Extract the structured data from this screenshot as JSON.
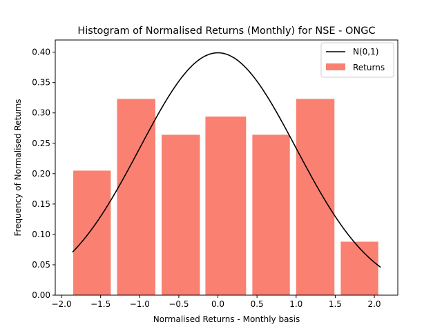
{
  "chart_data": {
    "type": "bar",
    "title": "Histogram of Normalised Returns (Monthly) for NSE - ONGC",
    "xlabel": "Normalised Returns - Monthly basis",
    "ylabel": "Frequency of Normalised Returns",
    "xlim": [
      -2.08,
      2.3
    ],
    "ylim": [
      0.0,
      0.42
    ],
    "xticks": [
      -2.0,
      -1.5,
      -1.0,
      -0.5,
      0.0,
      0.5,
      1.0,
      1.5,
      2.0
    ],
    "xtick_labels": [
      "−2.0",
      "−1.5",
      "−1.0",
      "−0.5",
      "0.0",
      "0.5",
      "1.0",
      "1.5",
      "2.0"
    ],
    "yticks": [
      0.0,
      0.05,
      0.1,
      0.15,
      0.2,
      0.25,
      0.3,
      0.35,
      0.4
    ],
    "ytick_labels": [
      "0.00",
      "0.05",
      "0.10",
      "0.15",
      "0.20",
      "0.25",
      "0.30",
      "0.35",
      "0.40"
    ],
    "bars": [
      {
        "x0": -1.85,
        "x1": -1.37,
        "value": 0.205
      },
      {
        "x0": -1.29,
        "x1": -0.8,
        "value": 0.323
      },
      {
        "x0": -0.72,
        "x1": -0.23,
        "value": 0.264
      },
      {
        "x0": -0.16,
        "x1": 0.36,
        "value": 0.294
      },
      {
        "x0": 0.44,
        "x1": 0.92,
        "value": 0.264
      },
      {
        "x0": 1.0,
        "x1": 1.49,
        "value": 0.323
      },
      {
        "x0": 1.57,
        "x1": 2.05,
        "value": 0.088
      }
    ],
    "curve": {
      "type": "normal_pdf",
      "mean": 0,
      "sd": 1,
      "x_range": [
        -1.86,
        2.08
      ]
    },
    "legend": {
      "position": "top-right",
      "entries": [
        {
          "label": "N(0,1)",
          "kind": "line",
          "color": "#000000"
        },
        {
          "label": "Returns",
          "kind": "patch",
          "color": "#fa8072"
        }
      ]
    },
    "colors": {
      "bars": "#fa8072",
      "curve": "#000000"
    }
  }
}
